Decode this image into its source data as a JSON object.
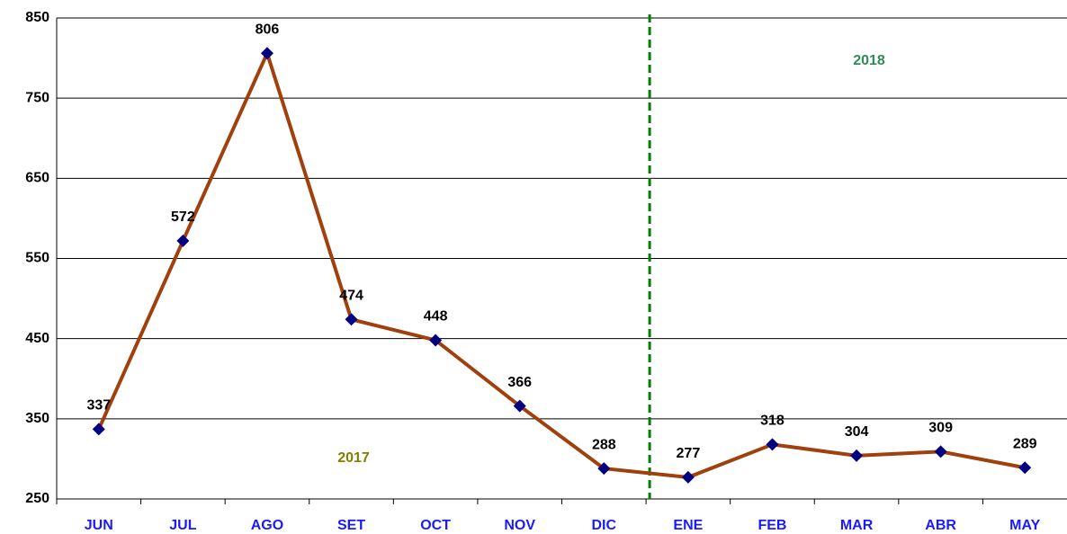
{
  "chart_data": {
    "type": "line",
    "categories": [
      "JUN",
      "JUL",
      "AGO",
      "SET",
      "OCT",
      "NOV",
      "DIC",
      "ENE",
      "FEB",
      "MAR",
      "ABR",
      "MAY"
    ],
    "series": [
      {
        "color": "#a0410d",
        "marker_color": "#000080",
        "values": [
          337,
          572,
          806,
          474,
          448,
          366,
          288,
          277,
          318,
          304,
          309,
          289
        ]
      }
    ],
    "ylim": [
      250,
      850
    ],
    "yticks": [
      250,
      350,
      450,
      550,
      650,
      750,
      850
    ],
    "grid": true,
    "annotations": [
      {
        "text": "2017",
        "color": "#808000"
      },
      {
        "text": "2018",
        "color": "#2e8b57"
      }
    ]
  }
}
